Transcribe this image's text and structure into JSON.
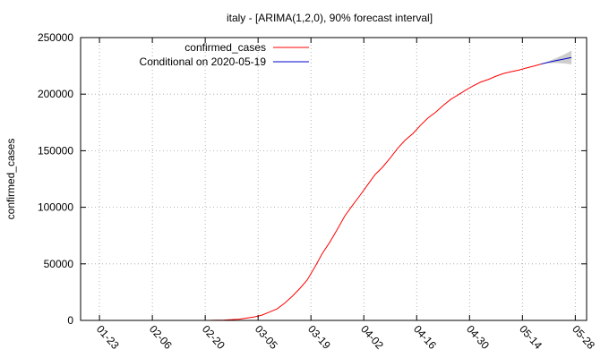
{
  "chart_data": {
    "type": "line",
    "title": "italy -  [ARIMA(1,2,0), 90% forecast interval]",
    "xlabel": "",
    "ylabel": "confirmed_cases",
    "x_axis": {
      "type": "date",
      "ticks": [
        {
          "label": "01-23",
          "date": "2020-01-23"
        },
        {
          "label": "02-06",
          "date": "2020-02-06"
        },
        {
          "label": "02-20",
          "date": "2020-02-20"
        },
        {
          "label": "03-05",
          "date": "2020-03-05"
        },
        {
          "label": "03-19",
          "date": "2020-03-19"
        },
        {
          "label": "04-02",
          "date": "2020-04-02"
        },
        {
          "label": "04-16",
          "date": "2020-04-16"
        },
        {
          "label": "04-30",
          "date": "2020-04-30"
        },
        {
          "label": "05-14",
          "date": "2020-05-14"
        },
        {
          "label": "05-28",
          "date": "2020-05-28"
        }
      ],
      "range": [
        "2020-01-18",
        "2020-05-31"
      ]
    },
    "y_axis": {
      "ticks": [
        0,
        50000,
        100000,
        150000,
        200000,
        250000
      ],
      "ylim": [
        0,
        250000
      ]
    },
    "grid": true,
    "legend": "top-left",
    "series": [
      {
        "name": "confirmed_cases",
        "color": "#ff0000",
        "points": [
          [
            "2020-02-21",
            20
          ],
          [
            "2020-02-23",
            150
          ],
          [
            "2020-02-25",
            320
          ],
          [
            "2020-02-27",
            650
          ],
          [
            "2020-02-29",
            1130
          ],
          [
            "2020-03-02",
            2040
          ],
          [
            "2020-03-04",
            3090
          ],
          [
            "2020-03-06",
            4640
          ],
          [
            "2020-03-08",
            7380
          ],
          [
            "2020-03-10",
            10150
          ],
          [
            "2020-03-12",
            15110
          ],
          [
            "2020-03-14",
            21160
          ],
          [
            "2020-03-16",
            27980
          ],
          [
            "2020-03-18",
            35710
          ],
          [
            "2020-03-20",
            47020
          ],
          [
            "2020-03-22",
            59140
          ],
          [
            "2020-03-24",
            69180
          ],
          [
            "2020-03-26",
            80590
          ],
          [
            "2020-03-28",
            92470
          ],
          [
            "2020-03-30",
            101740
          ],
          [
            "2020-04-01",
            110570
          ],
          [
            "2020-04-03",
            119830
          ],
          [
            "2020-04-05",
            128950
          ],
          [
            "2020-04-07",
            135590
          ],
          [
            "2020-04-09",
            143630
          ],
          [
            "2020-04-11",
            152270
          ],
          [
            "2020-04-13",
            159520
          ],
          [
            "2020-04-15",
            165160
          ],
          [
            "2020-04-17",
            172430
          ],
          [
            "2020-04-19",
            178970
          ],
          [
            "2020-04-21",
            183960
          ],
          [
            "2020-04-23",
            189970
          ],
          [
            "2020-04-25",
            195350
          ],
          [
            "2020-04-27",
            199410
          ],
          [
            "2020-04-29",
            203590
          ],
          [
            "2020-05-01",
            207430
          ],
          [
            "2020-05-03",
            210720
          ],
          [
            "2020-05-05",
            213010
          ],
          [
            "2020-05-07",
            215860
          ],
          [
            "2020-05-09",
            218270
          ],
          [
            "2020-05-11",
            219810
          ],
          [
            "2020-05-13",
            221220
          ],
          [
            "2020-05-15",
            223100
          ],
          [
            "2020-05-17",
            224760
          ],
          [
            "2020-05-19",
            226690
          ]
        ]
      },
      {
        "name": "Conditional on 2020-05-19",
        "color": "#0000cc",
        "points": [
          [
            "2020-05-19",
            226690
          ],
          [
            "2020-05-21",
            228300
          ],
          [
            "2020-05-23",
            229700
          ],
          [
            "2020-05-25",
            231000
          ],
          [
            "2020-05-27",
            232400
          ]
        ]
      }
    ],
    "interval": {
      "label": "90% forecast interval",
      "color": "#c8c8c8",
      "upper": [
        [
          "2020-05-19",
          226690
        ],
        [
          "2020-05-21",
          229200
        ],
        [
          "2020-05-23",
          232000
        ],
        [
          "2020-05-25",
          235000
        ],
        [
          "2020-05-27",
          238500
        ]
      ],
      "lower": [
        [
          "2020-05-19",
          226690
        ],
        [
          "2020-05-21",
          227400
        ],
        [
          "2020-05-23",
          227600
        ],
        [
          "2020-05-25",
          227200
        ],
        [
          "2020-05-27",
          226300
        ]
      ]
    }
  }
}
